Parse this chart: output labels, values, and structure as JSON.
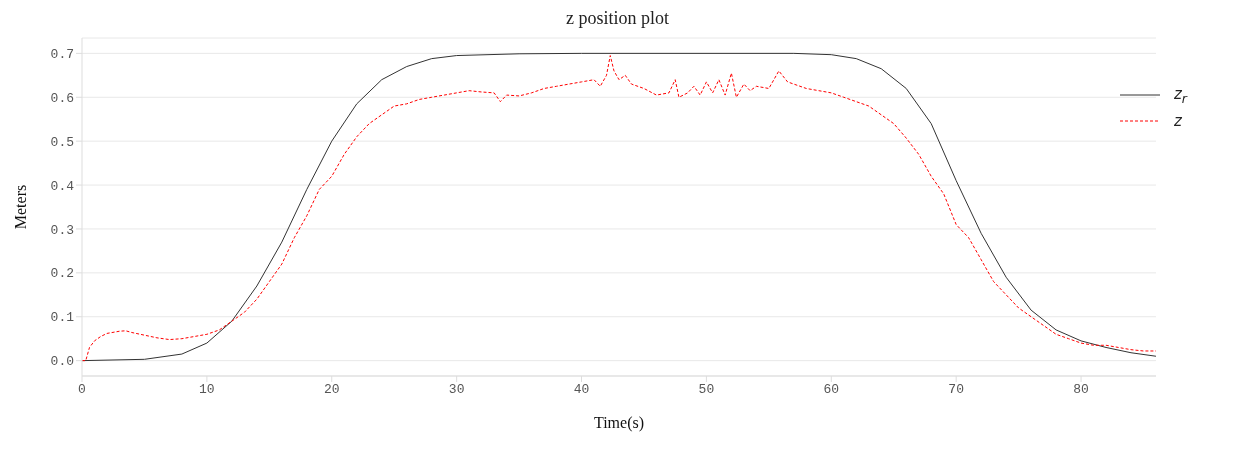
{
  "chart_data": {
    "type": "line",
    "title": "z position plot",
    "xlabel": "Time(s)",
    "ylabel": "Meters",
    "xlim": [
      0,
      86
    ],
    "ylim": [
      -0.035,
      0.735
    ],
    "xticks": [
      0,
      10,
      20,
      30,
      40,
      50,
      60,
      70,
      80
    ],
    "yticks": [
      {
        "value": 0,
        "label": "0.0"
      },
      0.1,
      0.2,
      0.3,
      0.4,
      0.5,
      0.6,
      0.7
    ],
    "grid": "y",
    "legend": "top right",
    "marker": "none",
    "series": [
      {
        "name": "z$_{r}$",
        "color": "#333333",
        "line_style": "solid",
        "x": [
          0,
          5,
          8,
          10,
          12,
          14,
          16,
          18,
          20,
          22,
          24,
          26,
          28,
          30,
          35,
          40,
          57,
          60,
          62,
          64,
          66,
          68,
          70,
          72,
          74,
          76,
          78,
          80,
          82,
          84,
          86
        ],
        "values": [
          0,
          0.003,
          0.015,
          0.04,
          0.09,
          0.17,
          0.27,
          0.39,
          0.5,
          0.585,
          0.64,
          0.67,
          0.688,
          0.695,
          0.699,
          0.7,
          0.7,
          0.697,
          0.688,
          0.665,
          0.62,
          0.54,
          0.41,
          0.29,
          0.19,
          0.115,
          0.07,
          0.045,
          0.03,
          0.018,
          0.01
        ]
      },
      {
        "name": "z",
        "color": "#ff0000",
        "line_style": "dashed",
        "x": [
          0,
          0.3,
          0.6,
          1,
          1.5,
          2,
          3,
          3.5,
          4,
          5,
          6,
          7,
          8,
          9,
          10,
          11,
          12,
          13,
          14,
          15,
          16,
          17,
          18,
          19,
          20,
          21,
          22,
          23,
          24,
          25,
          26,
          27,
          28,
          29,
          30,
          31,
          32,
          33,
          33.5,
          34,
          35,
          36,
          37,
          38,
          39,
          40,
          41,
          41.5,
          42,
          42.3,
          42.6,
          43,
          43.5,
          44,
          45,
          46,
          47,
          47.5,
          47.8,
          48.5,
          49,
          49.5,
          50,
          50.5,
          51,
          51.5,
          52,
          52.4,
          53,
          53.5,
          54,
          55,
          55.8,
          56.5,
          57,
          58,
          59,
          60,
          61,
          62,
          63,
          64,
          65,
          66,
          67,
          68,
          69,
          70,
          71,
          72,
          73,
          74,
          75,
          76,
          77,
          78,
          79,
          80,
          81,
          82,
          83,
          84,
          85,
          86
        ],
        "values": [
          0,
          0,
          0.03,
          0.045,
          0.055,
          0.062,
          0.067,
          0.068,
          0.064,
          0.058,
          0.052,
          0.048,
          0.05,
          0.055,
          0.06,
          0.07,
          0.09,
          0.11,
          0.14,
          0.18,
          0.22,
          0.28,
          0.33,
          0.39,
          0.42,
          0.47,
          0.51,
          0.54,
          0.56,
          0.58,
          0.585,
          0.595,
          0.6,
          0.605,
          0.61,
          0.615,
          0.612,
          0.61,
          0.59,
          0.605,
          0.603,
          0.61,
          0.62,
          0.625,
          0.63,
          0.635,
          0.64,
          0.625,
          0.65,
          0.695,
          0.66,
          0.64,
          0.65,
          0.63,
          0.62,
          0.605,
          0.61,
          0.64,
          0.6,
          0.61,
          0.625,
          0.605,
          0.635,
          0.61,
          0.64,
          0.605,
          0.655,
          0.6,
          0.63,
          0.615,
          0.625,
          0.62,
          0.66,
          0.635,
          0.63,
          0.62,
          0.615,
          0.61,
          0.6,
          0.59,
          0.58,
          0.56,
          0.54,
          0.507,
          0.47,
          0.42,
          0.38,
          0.31,
          0.28,
          0.23,
          0.18,
          0.15,
          0.12,
          0.1,
          0.08,
          0.06,
          0.05,
          0.04,
          0.035,
          0.035,
          0.03,
          0.025,
          0.022,
          0.022
        ]
      }
    ]
  }
}
